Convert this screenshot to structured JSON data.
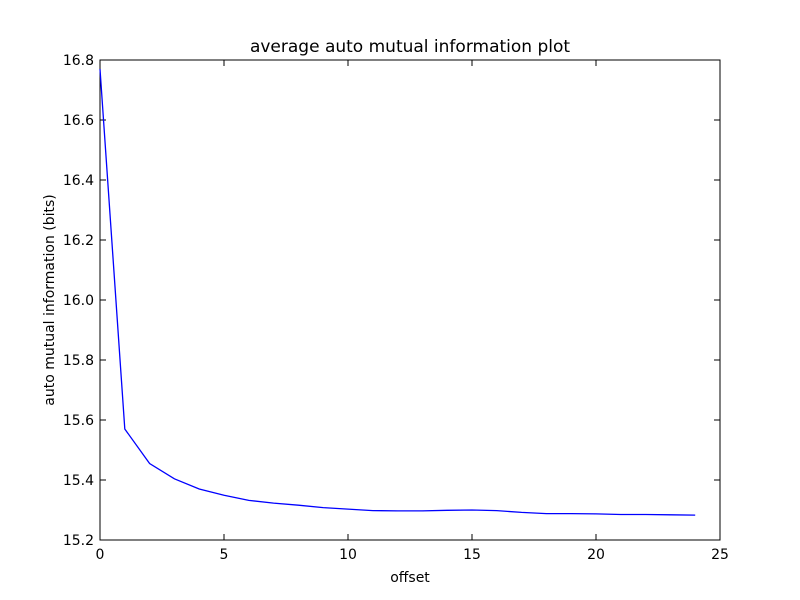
{
  "chart_data": {
    "type": "line",
    "title": "average auto mutual information plot",
    "xlabel": "offset",
    "ylabel": "auto mutual information (bits)",
    "xlim": [
      0,
      25
    ],
    "ylim": [
      15.2,
      16.8
    ],
    "xticks": [
      "0",
      "5",
      "10",
      "15",
      "20",
      "25"
    ],
    "yticks": [
      "15.2",
      "15.4",
      "15.6",
      "15.8",
      "16.0",
      "16.2",
      "16.4",
      "16.6",
      "16.8"
    ],
    "grid": false,
    "line_color": "#0000ff",
    "series": [
      {
        "x": [
          0,
          1,
          2,
          3,
          4,
          5,
          6,
          7,
          8,
          9,
          10,
          11,
          12,
          13,
          14,
          15,
          16,
          17,
          18,
          19,
          20,
          21,
          22,
          23,
          24
        ],
        "y": [
          16.77,
          15.57,
          15.455,
          15.404,
          15.37,
          15.349,
          15.332,
          15.323,
          15.316,
          15.308,
          15.303,
          15.298,
          15.297,
          15.297,
          15.299,
          15.3,
          15.298,
          15.292,
          15.288,
          15.288,
          15.287,
          15.285,
          15.285,
          15.284,
          15.283
        ]
      }
    ]
  }
}
